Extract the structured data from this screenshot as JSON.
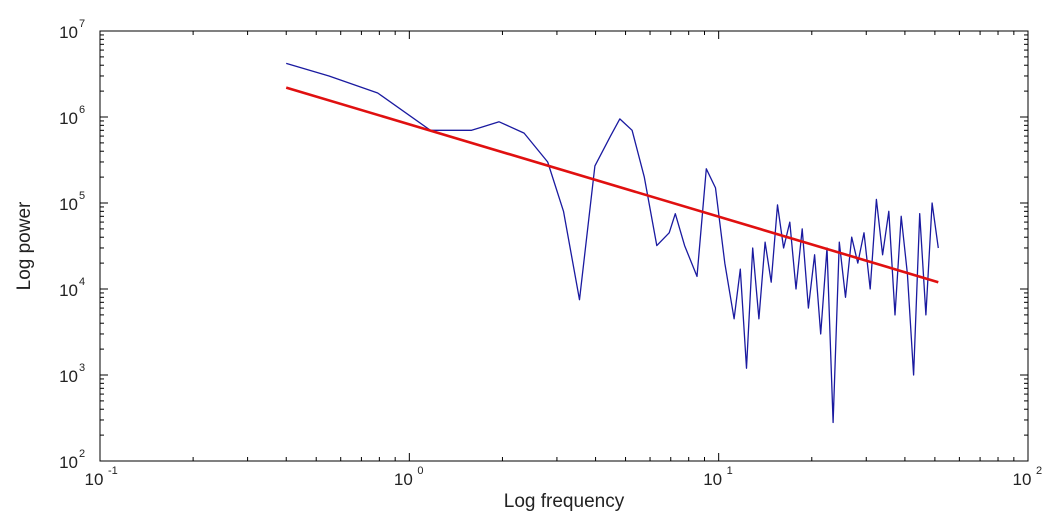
{
  "chart_data": {
    "type": "line",
    "title": "",
    "xlabel": "Log frequency",
    "ylabel": "Log power",
    "x_scale": "log",
    "y_scale": "log",
    "xlim": [
      0.1,
      100
    ],
    "ylim": [
      100,
      10000000
    ],
    "grid": false,
    "x_ticks": [
      {
        "base": "10",
        "exp": "-1",
        "value": 0.1
      },
      {
        "base": "10",
        "exp": "0",
        "value": 1
      },
      {
        "base": "10",
        "exp": "1",
        "value": 10
      },
      {
        "base": "10",
        "exp": "2",
        "value": 100
      }
    ],
    "y_ticks": [
      {
        "base": "10",
        "exp": "2",
        "value": 100
      },
      {
        "base": "10",
        "exp": "3",
        "value": 1000
      },
      {
        "base": "10",
        "exp": "4",
        "value": 10000
      },
      {
        "base": "10",
        "exp": "5",
        "value": 100000
      },
      {
        "base": "10",
        "exp": "6",
        "value": 1000000
      },
      {
        "base": "10",
        "exp": "7",
        "value": 10000000
      }
    ],
    "series": [
      {
        "color": "#1a1aa0",
        "style": "spectrum",
        "x": [
          0.4,
          0.55,
          0.79,
          1.17,
          1.59,
          1.95,
          2.35,
          2.8,
          3.15,
          3.55,
          3.98,
          4.47,
          4.79,
          5.25,
          5.75,
          6.31,
          6.92,
          7.24,
          7.76,
          8.51,
          9.12,
          9.77,
          10.47,
          11.22,
          11.75,
          12.3,
          12.88,
          13.49,
          14.13,
          14.79,
          15.49,
          16.22,
          16.98,
          17.78,
          18.62,
          19.5,
          20.42,
          21.38,
          22.39,
          23.44,
          24.55,
          25.7,
          26.92,
          28.18,
          29.51,
          30.9,
          32.36,
          33.88,
          35.48,
          37.15,
          38.9,
          40.74,
          42.66,
          44.67,
          46.77,
          48.98,
          51.29
        ],
        "y": [
          4200000,
          3000000,
          1900000,
          700000,
          700000,
          880000,
          650000,
          300000,
          80000,
          7500,
          270000,
          600000,
          950000,
          700000,
          200000,
          32000,
          45000,
          75000,
          32000,
          14000,
          250000,
          150000,
          20000,
          4500,
          17000,
          1200,
          30000,
          4500,
          35000,
          12000,
          95000,
          30000,
          60000,
          10000,
          50000,
          6000,
          25000,
          3000,
          30000,
          280,
          35000,
          8000,
          40000,
          20000,
          45000,
          10000,
          110000,
          25000,
          80000,
          5000,
          70000,
          15000,
          1000,
          75000,
          5000,
          100000,
          30000
        ]
      },
      {
        "color": "#e01010",
        "style": "fit",
        "x": [
          0.4,
          51.29
        ],
        "y": [
          2200000,
          12000
        ]
      }
    ]
  }
}
